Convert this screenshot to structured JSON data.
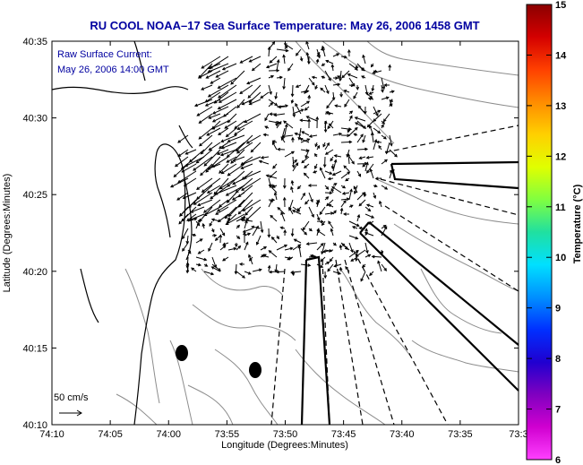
{
  "title": "RU COOL  NOAA–17  Sea Surface Temperature:  May 26, 2006 1458 GMT",
  "inset": {
    "line1": "Raw Surface Current:",
    "line2": "May 26, 2006 14:00 GMT"
  },
  "scale_label": "50 cm/s",
  "x_axis": {
    "label": "Longitude (Degrees:Minutes)",
    "ticks": [
      "74:10",
      "74:05",
      "74:00",
      "73:55",
      "73:50",
      "73:45",
      "73:40",
      "73:35",
      "73:3"
    ]
  },
  "y_axis": {
    "label": "Latitude (Degrees:Minutes)",
    "ticks": [
      "40:35",
      "40:30",
      "40:25",
      "40:20",
      "40:15",
      "40:10"
    ]
  },
  "colorbar": {
    "label": "Temperature (°C)",
    "ticks": [
      "15",
      "14",
      "13",
      "12",
      "11",
      "10",
      "9",
      "8",
      "7",
      "6"
    ],
    "colors": [
      "#8b0000",
      "#d40000",
      "#ff4000",
      "#ff8c00",
      "#ffd000",
      "#e0ff00",
      "#80ff40",
      "#20e0a0",
      "#00e0ff",
      "#0090ff",
      "#0030ff",
      "#2000d0",
      "#8000c0",
      "#d000d0",
      "#ff40ff"
    ]
  },
  "map": {
    "land_color": "#ffffff",
    "coast_color": "#000000",
    "contour_color": "#808080",
    "vector_color": "#000000"
  }
}
